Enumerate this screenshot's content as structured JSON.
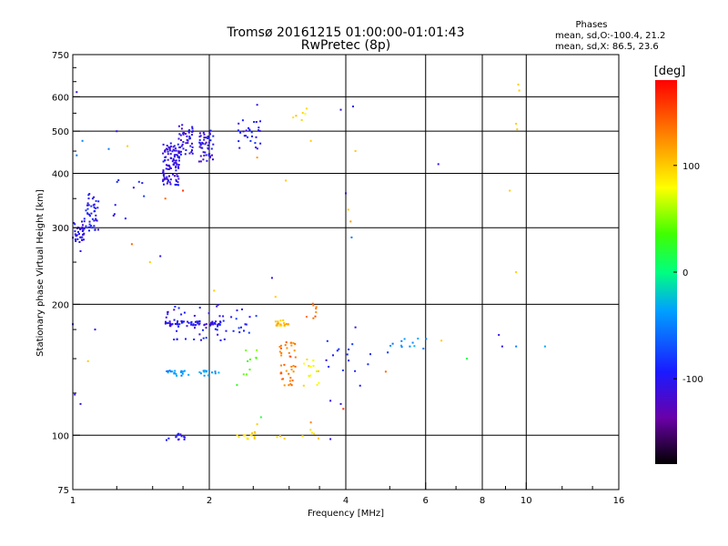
{
  "title": {
    "line1": "Tromsø 20161215 01:00:00-01:01:43",
    "line2": "RwPretec (8p)"
  },
  "stats": {
    "header": "Phases",
    "o_line": "mean, sd,O:-100.4, 21.2",
    "x_line": "mean, sd,X:  86.5, 23.6"
  },
  "chart_data": {
    "type": "scatter",
    "xlabel": "Frequency [MHz]",
    "ylabel": "Stationary phase Virtual Height [km]",
    "x_scale": "log2",
    "y_scale": "log",
    "xlim": [
      1,
      16
    ],
    "ylim": [
      75,
      750
    ],
    "x_ticks": [
      1,
      2,
      4,
      6,
      8,
      10,
      16
    ],
    "y_ticks": [
      75,
      100,
      200,
      300,
      400,
      500,
      600,
      750
    ],
    "x_gridlines": [
      2,
      4,
      6,
      8,
      10
    ],
    "y_gridlines": [
      100,
      200,
      300,
      400,
      500,
      600
    ],
    "grid": true,
    "colorbar": {
      "label": "[deg]",
      "range": [
        -180,
        180
      ],
      "ticks": [
        100,
        0,
        -100
      ],
      "colormap": "rainbow",
      "colors": [
        "#000000",
        "#5a00a0",
        "#0000ff",
        "#00ffff",
        "#00ff00",
        "#ffff00",
        "#ff8000",
        "#ff0000"
      ]
    },
    "clusters": [
      {
        "x": [
          1.0,
          1.06
        ],
        "y": [
          275,
          310
        ],
        "phase": -110,
        "n": 35
      },
      {
        "x": [
          1.06,
          1.14
        ],
        "y": [
          295,
          360
        ],
        "phase": -105,
        "n": 45
      },
      {
        "x": [
          1.18,
          1.45
        ],
        "y": [
          310,
          400
        ],
        "phase": -100,
        "n": 10
      },
      {
        "x": [
          1.58,
          1.72
        ],
        "y": [
          375,
          470
        ],
        "phase": -112,
        "n": 110
      },
      {
        "x": [
          1.7,
          1.85
        ],
        "y": [
          440,
          520
        ],
        "phase": -115,
        "n": 45
      },
      {
        "x": [
          1.9,
          2.05
        ],
        "y": [
          425,
          505
        ],
        "phase": -110,
        "n": 50
      },
      {
        "x": [
          2.3,
          2.6
        ],
        "y": [
          455,
          530
        ],
        "phase": -105,
        "n": 28
      },
      {
        "x": [
          3.05,
          3.3
        ],
        "y": [
          530,
          570
        ],
        "phase": 95,
        "n": 6
      },
      {
        "x": [
          1.6,
          2.15
        ],
        "y": [
          178,
          183
        ],
        "phase": -108,
        "n": 60
      },
      {
        "x": [
          1.6,
          2.2
        ],
        "y": [
          165,
          200
        ],
        "phase": -105,
        "n": 45
      },
      {
        "x": [
          2.2,
          2.55
        ],
        "y": [
          170,
          195
        ],
        "phase": -100,
        "n": 14
      },
      {
        "x": [
          1.6,
          1.8
        ],
        "y": [
          137,
          141
        ],
        "phase": -50,
        "n": 20
      },
      {
        "x": [
          1.9,
          2.1
        ],
        "y": [
          137,
          141
        ],
        "phase": -45,
        "n": 14
      },
      {
        "x": [
          2.3,
          2.6
        ],
        "y": [
          130,
          160
        ],
        "phase": 40,
        "n": 10
      },
      {
        "x": [
          2.8,
          3.0
        ],
        "y": [
          178,
          184
        ],
        "phase": 105,
        "n": 22
      },
      {
        "x": [
          2.85,
          3.1
        ],
        "y": [
          130,
          165
        ],
        "phase": 135,
        "n": 40
      },
      {
        "x": [
          3.2,
          3.5
        ],
        "y": [
          130,
          150
        ],
        "phase": 85,
        "n": 14
      },
      {
        "x": [
          3.25,
          3.45
        ],
        "y": [
          185,
          205
        ],
        "phase": 140,
        "n": 8
      },
      {
        "x": [
          3.6,
          4.6
        ],
        "y": [
          140,
          165
        ],
        "phase": -100,
        "n": 14
      },
      {
        "x": [
          5.0,
          6.1
        ],
        "y": [
          158,
          167
        ],
        "phase": -50,
        "n": 12
      },
      {
        "x": [
          1.6,
          1.8
        ],
        "y": [
          97,
          101
        ],
        "phase": -110,
        "n": 14
      },
      {
        "x": [
          2.3,
          2.55
        ],
        "y": [
          98,
          102
        ],
        "phase": 95,
        "n": 16
      },
      {
        "x": [
          2.75,
          3.5
        ],
        "y": [
          97,
          103
        ],
        "phase": 100,
        "n": 8
      }
    ],
    "singles": [
      {
        "x": 1.02,
        "y": 615,
        "phase": -110
      },
      {
        "x": 1.05,
        "y": 475,
        "phase": -55
      },
      {
        "x": 1.02,
        "y": 440,
        "phase": -60
      },
      {
        "x": 1.04,
        "y": 265,
        "phase": -110
      },
      {
        "x": 1.0,
        "y": 180,
        "phase": -110
      },
      {
        "x": 1.01,
        "y": 124,
        "phase": -110
      },
      {
        "x": 1.04,
        "y": 118,
        "phase": -110
      },
      {
        "x": 1.08,
        "y": 148,
        "phase": 100
      },
      {
        "x": 1.12,
        "y": 175,
        "phase": -110
      },
      {
        "x": 1.2,
        "y": 455,
        "phase": -60
      },
      {
        "x": 1.25,
        "y": 500,
        "phase": -110
      },
      {
        "x": 1.32,
        "y": 462,
        "phase": 100
      },
      {
        "x": 1.35,
        "y": 275,
        "phase": 140
      },
      {
        "x": 1.48,
        "y": 250,
        "phase": 100
      },
      {
        "x": 1.56,
        "y": 258,
        "phase": -110
      },
      {
        "x": 1.6,
        "y": 350,
        "phase": 140
      },
      {
        "x": 1.75,
        "y": 365,
        "phase": 160
      },
      {
        "x": 2.55,
        "y": 575,
        "phase": -110
      },
      {
        "x": 2.55,
        "y": 435,
        "phase": 120
      },
      {
        "x": 2.95,
        "y": 385,
        "phase": 100
      },
      {
        "x": 3.35,
        "y": 475,
        "phase": 100
      },
      {
        "x": 3.9,
        "y": 560,
        "phase": -110
      },
      {
        "x": 4.15,
        "y": 570,
        "phase": -110
      },
      {
        "x": 4.2,
        "y": 450,
        "phase": 100
      },
      {
        "x": 4.0,
        "y": 360,
        "phase": -110
      },
      {
        "x": 4.05,
        "y": 330,
        "phase": 100
      },
      {
        "x": 4.1,
        "y": 310,
        "phase": 120
      },
      {
        "x": 4.12,
        "y": 285,
        "phase": -60
      },
      {
        "x": 6.4,
        "y": 420,
        "phase": -110
      },
      {
        "x": 6.5,
        "y": 165,
        "phase": 100
      },
      {
        "x": 7.4,
        "y": 150,
        "phase": 20
      },
      {
        "x": 8.7,
        "y": 170,
        "phase": -110
      },
      {
        "x": 8.85,
        "y": 160,
        "phase": -110
      },
      {
        "x": 9.5,
        "y": 160,
        "phase": -60
      },
      {
        "x": 9.2,
        "y": 365,
        "phase": 100
      },
      {
        "x": 9.5,
        "y": 520,
        "phase": 100
      },
      {
        "x": 9.55,
        "y": 505,
        "phase": 100
      },
      {
        "x": 9.6,
        "y": 640,
        "phase": 100
      },
      {
        "x": 9.65,
        "y": 620,
        "phase": 100
      },
      {
        "x": 9.5,
        "y": 237,
        "phase": 100
      },
      {
        "x": 11.0,
        "y": 160,
        "phase": -40
      },
      {
        "x": 4.9,
        "y": 140,
        "phase": 140
      },
      {
        "x": 4.95,
        "y": 155,
        "phase": -90
      },
      {
        "x": 4.3,
        "y": 130,
        "phase": -100
      },
      {
        "x": 3.9,
        "y": 118,
        "phase": -110
      },
      {
        "x": 3.7,
        "y": 120,
        "phase": -110
      },
      {
        "x": 3.95,
        "y": 115,
        "phase": 160
      },
      {
        "x": 2.75,
        "y": 230,
        "phase": -110
      },
      {
        "x": 2.8,
        "y": 208,
        "phase": 100
      },
      {
        "x": 2.05,
        "y": 215,
        "phase": 100
      },
      {
        "x": 2.55,
        "y": 106,
        "phase": 100
      },
      {
        "x": 2.6,
        "y": 110,
        "phase": 20
      },
      {
        "x": 3.35,
        "y": 107,
        "phase": 130
      },
      {
        "x": 3.7,
        "y": 98,
        "phase": -110
      },
      {
        "x": 4.2,
        "y": 177,
        "phase": -110
      }
    ]
  }
}
